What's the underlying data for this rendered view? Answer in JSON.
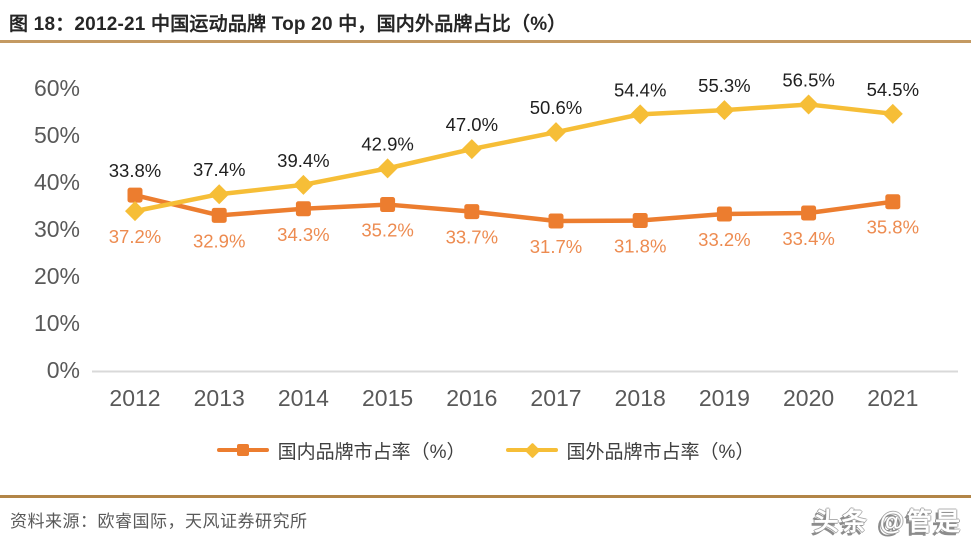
{
  "header": {
    "title": "图 18：2012-21 中国运动品牌 Top 20 中，国内外品牌占比（%）"
  },
  "footer": {
    "source": "资料来源：欧睿国际，天风证券研究所",
    "watermark": "头条 @管是"
  },
  "colors": {
    "domestic_series": "#EC7D2F",
    "foreign_series": "#F6BE37",
    "domestic_label": "#ED8B50",
    "foreign_label": "#1F1F1F",
    "axis_text": "#595959",
    "axis_line": "#D9D9D9",
    "divider_top": "#C49A62",
    "divider_bottom": "#B28547"
  },
  "chart_data": {
    "type": "line",
    "title": "图 18：2012-21 中国运动品牌 Top 20 中，国内外品牌占比（%）",
    "categories": [
      "2012",
      "2013",
      "2014",
      "2015",
      "2016",
      "2017",
      "2018",
      "2019",
      "2020",
      "2021"
    ],
    "series": [
      {
        "name": "国内品牌市占率（%）",
        "values": [
          37.2,
          32.9,
          34.3,
          35.2,
          33.7,
          31.7,
          31.8,
          33.2,
          33.4,
          35.8
        ],
        "color": "#EC7D2F",
        "marker": "square",
        "label_color": "#ED8B50",
        "label_position": "below"
      },
      {
        "name": "国外品牌市占率（%）",
        "values": [
          33.8,
          37.4,
          39.4,
          42.9,
          47.0,
          50.6,
          54.4,
          55.3,
          56.5,
          54.5
        ],
        "color": "#F6BE37",
        "marker": "diamond",
        "label_color": "#1F1F1F",
        "label_position": "above"
      }
    ],
    "xlabel": "",
    "ylabel": "",
    "ylim": [
      0,
      60
    ],
    "yticks": [
      0,
      10,
      20,
      30,
      40,
      50,
      60
    ],
    "ytick_suffix": "%",
    "grid": false,
    "legend_position": "bottom",
    "data_labels": true
  }
}
